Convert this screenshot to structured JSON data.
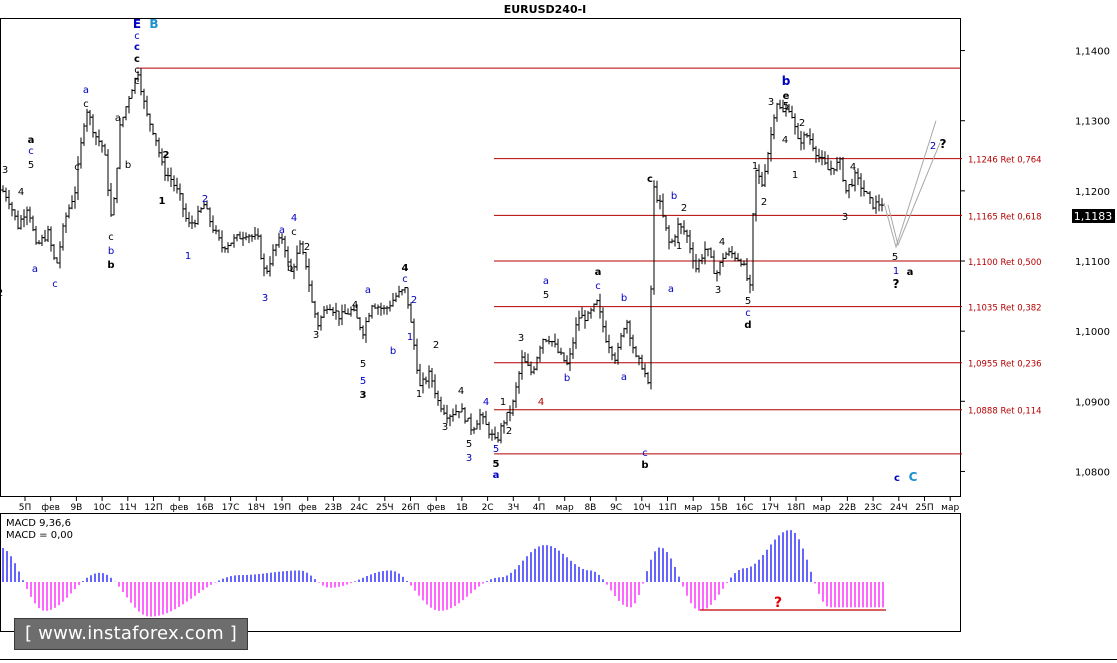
{
  "title": "EURUSD240-I",
  "current_price": "1,1183",
  "watermark": "[ www.instaforex.com ]",
  "colors": {
    "up": "#0000ff",
    "down": "#ff00ff",
    "fib": "#b40000",
    "wave_black": "#000000",
    "wave_blue": "#0000c0",
    "wave_cyan": "#1e90d0",
    "projection": "#a8a8a8"
  },
  "chart_data": [
    {
      "type": "candlestick",
      "title": "EURUSD240-I",
      "ylim": [
        1.0765,
        1.1445
      ],
      "y_ticks": [
        "1,1400",
        "1,1300",
        "1,1200",
        "1,1100",
        "1,1000",
        "1,0900",
        "1,0800"
      ],
      "y_tick_values": [
        1.14,
        1.13,
        1.12,
        1.11,
        1.1,
        1.09,
        1.08
      ],
      "x_ticks": [
        "5П",
        "фев",
        "9В",
        "10С",
        "11Ч",
        "12П",
        "фев",
        "16В",
        "17С",
        "18Ч",
        "19П",
        "фев",
        "23В",
        "24С",
        "25Ч",
        "26П",
        "фев",
        "1В",
        "2С",
        "3Ч",
        "4П",
        "мар",
        "8В",
        "9С",
        "10Ч",
        "11П",
        "мар",
        "15В",
        "16С",
        "17Ч",
        "18П",
        "мар",
        "22В",
        "23С",
        "24Ч",
        "25П",
        "мар"
      ],
      "price_path": [
        [
          0,
          1.1205
        ],
        [
          8,
          1.119
        ],
        [
          18,
          1.115
        ],
        [
          28,
          1.118
        ],
        [
          36,
          1.112
        ],
        [
          48,
          1.114
        ],
        [
          56,
          1.109
        ],
        [
          65,
          1.116
        ],
        [
          75,
          1.12
        ],
        [
          86,
          1.132
        ],
        [
          95,
          1.128
        ],
        [
          104,
          1.126
        ],
        [
          112,
          1.115
        ],
        [
          120,
          1.129
        ],
        [
          130,
          1.134
        ],
        [
          138,
          1.137
        ],
        [
          146,
          1.131
        ],
        [
          155,
          1.128
        ],
        [
          163,
          1.123
        ],
        [
          172,
          1.1215
        ],
        [
          180,
          1.119
        ],
        [
          188,
          1.115
        ],
        [
          196,
          1.116
        ],
        [
          204,
          1.118
        ],
        [
          212,
          1.115
        ],
        [
          222,
          1.112
        ],
        [
          234,
          1.113
        ],
        [
          246,
          1.114
        ],
        [
          258,
          1.113
        ],
        [
          265,
          1.108
        ],
        [
          275,
          1.112
        ],
        [
          283,
          1.1135
        ],
        [
          290,
          1.108
        ],
        [
          300,
          1.112
        ],
        [
          306,
          1.1095
        ],
        [
          312,
          1.104
        ],
        [
          318,
          1.101
        ],
        [
          328,
          1.104
        ],
        [
          340,
          1.102
        ],
        [
          352,
          1.103
        ],
        [
          363,
          1.1
        ],
        [
          372,
          1.104
        ],
        [
          385,
          1.103
        ],
        [
          396,
          1.105
        ],
        [
          406,
          1.106
        ],
        [
          413,
          1.099
        ],
        [
          420,
          1.092
        ],
        [
          430,
          1.094
        ],
        [
          438,
          1.09
        ],
        [
          448,
          1.088
        ],
        [
          460,
          1.089
        ],
        [
          472,
          1.086
        ],
        [
          480,
          1.088
        ],
        [
          488,
          1.086
        ],
        [
          496,
          1.084
        ],
        [
          503,
          1.087
        ],
        [
          512,
          1.089
        ],
        [
          522,
          1.096
        ],
        [
          532,
          1.094
        ],
        [
          542,
          1.099
        ],
        [
          550,
          1.099
        ],
        [
          558,
          1.097
        ],
        [
          568,
          1.095
        ],
        [
          578,
          1.102
        ],
        [
          588,
          1.102
        ],
        [
          597,
          1.104
        ],
        [
          606,
          1.099
        ],
        [
          616,
          1.096
        ],
        [
          626,
          1.102
        ],
        [
          636,
          1.096
        ],
        [
          643,
          1.095
        ],
        [
          650,
          1.091
        ],
        [
          652,
          1.121
        ],
        [
          660,
          1.118
        ],
        [
          670,
          1.112
        ],
        [
          678,
          1.115
        ],
        [
          686,
          1.114
        ],
        [
          696,
          1.109
        ],
        [
          706,
          1.112
        ],
        [
          716,
          1.108
        ],
        [
          724,
          1.111
        ],
        [
          732,
          1.111
        ],
        [
          742,
          1.11
        ],
        [
          750,
          1.106
        ],
        [
          755,
          1.123
        ],
        [
          762,
          1.121
        ],
        [
          770,
          1.127
        ],
        [
          776,
          1.133
        ],
        [
          782,
          1.131
        ],
        [
          790,
          1.132
        ],
        [
          798,
          1.127
        ],
        [
          808,
          1.128
        ],
        [
          818,
          1.125
        ],
        [
          828,
          1.123
        ],
        [
          840,
          1.124
        ],
        [
          846,
          1.12
        ],
        [
          855,
          1.122
        ],
        [
          864,
          1.12
        ],
        [
          872,
          1.118
        ],
        [
          884,
          1.1183
        ]
      ],
      "projection": [
        [
          884,
          1.1183
        ],
        [
          896,
          1.112
        ],
        [
          936,
          1.13
        ]
      ]
    },
    {
      "type": "bar",
      "title": "MACD 9,36,6",
      "signal_label": "MACD = 0,00",
      "ylim": [
        -0.0045,
        0.0045
      ],
      "note_label": "?"
    }
  ],
  "fib_levels": [
    {
      "price": 1.1375,
      "label": ""
    },
    {
      "price": 1.1246,
      "label": "1,1246 Ret 0,764"
    },
    {
      "price": 1.1165,
      "label": "1,1165 Ret 0,618"
    },
    {
      "price": 1.11,
      "label": "1,1100 Ret 0,500"
    },
    {
      "price": 1.1035,
      "label": "1,1035 Ret 0,382"
    },
    {
      "price": 1.0955,
      "label": "1,0955 Ret 0,236"
    },
    {
      "price": 1.0888,
      "label": "1,0888 Ret 0,114"
    },
    {
      "price": 1.0825,
      "label": ""
    }
  ],
  "wave_labels": [
    {
      "t": "E",
      "c": "b",
      "x": 137,
      "y": 28,
      "b": 1,
      "s": 12
    },
    {
      "t": "B",
      "c": "c",
      "x": 154,
      "y": 28,
      "b": 1,
      "s": 12
    },
    {
      "t": "c",
      "c": "b",
      "x": 137,
      "y": 39
    },
    {
      "t": "c",
      "c": "b",
      "x": 137,
      "y": 50,
      "b": 1
    },
    {
      "t": "c",
      "c": "k",
      "x": 137,
      "y": 62,
      "b": 1
    },
    {
      "t": "c",
      "c": "k",
      "x": 137,
      "y": 73
    },
    {
      "t": "c",
      "c": "k",
      "x": 137,
      "y": 84
    },
    {
      "t": "a",
      "c": "b",
      "x": 86,
      "y": 93
    },
    {
      "t": "c",
      "c": "k",
      "x": 86,
      "y": 107
    },
    {
      "t": "a",
      "c": "k",
      "x": 118,
      "y": 121
    },
    {
      "t": "a",
      "c": "k",
      "x": 31,
      "y": 143,
      "b": 1
    },
    {
      "t": "c",
      "c": "b",
      "x": 31,
      "y": 154
    },
    {
      "t": "5",
      "c": "k",
      "x": 31,
      "y": 168
    },
    {
      "t": "3",
      "c": "k",
      "x": 5,
      "y": 173
    },
    {
      "t": "4",
      "c": "k",
      "x": 21,
      "y": 195
    },
    {
      "t": "c",
      "c": "k",
      "x": 77,
      "y": 170
    },
    {
      "t": "2",
      "c": "k",
      "x": 0,
      "y": 296
    },
    {
      "t": "a",
      "c": "b",
      "x": 35,
      "y": 272
    },
    {
      "t": "c",
      "c": "b",
      "x": 55,
      "y": 287
    },
    {
      "t": "c",
      "c": "k",
      "x": 111,
      "y": 240
    },
    {
      "t": "b",
      "c": "b",
      "x": 111,
      "y": 254
    },
    {
      "t": "b",
      "c": "k",
      "x": 111,
      "y": 268,
      "b": 1
    },
    {
      "t": "b",
      "c": "k",
      "x": 128,
      "y": 168
    },
    {
      "t": "2",
      "c": "k",
      "x": 166,
      "y": 158,
      "b": 1
    },
    {
      "t": "1",
      "c": "k",
      "x": 162,
      "y": 204,
      "b": 1
    },
    {
      "t": "2",
      "c": "b",
      "x": 205,
      "y": 202
    },
    {
      "t": "1",
      "c": "b",
      "x": 188,
      "y": 259
    },
    {
      "t": "4",
      "c": "b",
      "x": 294,
      "y": 221
    },
    {
      "t": "a",
      "c": "b",
      "x": 282,
      "y": 233
    },
    {
      "t": "c",
      "c": "k",
      "x": 294,
      "y": 235
    },
    {
      "t": "2",
      "c": "k",
      "x": 307,
      "y": 250
    },
    {
      "t": "b",
      "c": "k",
      "x": 290,
      "y": 271
    },
    {
      "t": "3",
      "c": "b",
      "x": 265,
      "y": 301
    },
    {
      "t": "3",
      "c": "k",
      "x": 316,
      "y": 338
    },
    {
      "t": "4",
      "c": "k",
      "x": 355,
      "y": 308
    },
    {
      "t": "a",
      "c": "b",
      "x": 368,
      "y": 293
    },
    {
      "t": "b",
      "c": "b",
      "x": 393,
      "y": 354
    },
    {
      "t": "5",
      "c": "k",
      "x": 363,
      "y": 367
    },
    {
      "t": "5",
      "c": "b",
      "x": 363,
      "y": 384
    },
    {
      "t": "3",
      "c": "k",
      "x": 363,
      "y": 398,
      "b": 1
    },
    {
      "t": "4",
      "c": "k",
      "x": 405,
      "y": 271,
      "b": 1
    },
    {
      "t": "c",
      "c": "b",
      "x": 405,
      "y": 282
    },
    {
      "t": "2",
      "c": "b",
      "x": 414,
      "y": 303
    },
    {
      "t": "1",
      "c": "b",
      "x": 410,
      "y": 340
    },
    {
      "t": "2",
      "c": "k",
      "x": 436,
      "y": 348
    },
    {
      "t": "1",
      "c": "k",
      "x": 419,
      "y": 397
    },
    {
      "t": "4",
      "c": "k",
      "x": 461,
      "y": 394
    },
    {
      "t": "4",
      "c": "b",
      "x": 486,
      "y": 405
    },
    {
      "t": "3",
      "c": "k",
      "x": 445,
      "y": 430
    },
    {
      "t": "5",
      "c": "k",
      "x": 469,
      "y": 447
    },
    {
      "t": "3",
      "c": "b",
      "x": 469,
      "y": 461
    },
    {
      "t": "5",
      "c": "b",
      "x": 496,
      "y": 452
    },
    {
      "t": "5",
      "c": "k",
      "x": 496,
      "y": 467,
      "b": 1
    },
    {
      "t": "a",
      "c": "b",
      "x": 496,
      "y": 478,
      "b": 1
    },
    {
      "t": "1",
      "c": "k",
      "x": 503,
      "y": 405
    },
    {
      "t": "2",
      "c": "k",
      "x": 509,
      "y": 434
    },
    {
      "t": "3",
      "c": "k",
      "x": 521,
      "y": 341
    },
    {
      "t": "4",
      "c": "r",
      "x": 541,
      "y": 405
    },
    {
      "t": "a",
      "c": "b",
      "x": 546,
      "y": 284
    },
    {
      "t": "5",
      "c": "k",
      "x": 546,
      "y": 298
    },
    {
      "t": "b",
      "c": "b",
      "x": 567,
      "y": 381
    },
    {
      "t": "a",
      "c": "k",
      "x": 598,
      "y": 275,
      "b": 1
    },
    {
      "t": "c",
      "c": "b",
      "x": 598,
      "y": 289
    },
    {
      "t": "b",
      "c": "b",
      "x": 624,
      "y": 301
    },
    {
      "t": "a",
      "c": "b",
      "x": 624,
      "y": 380
    },
    {
      "t": "c",
      "c": "b",
      "x": 645,
      "y": 456
    },
    {
      "t": "b",
      "c": "k",
      "x": 645,
      "y": 468,
      "b": 1
    },
    {
      "t": "c",
      "c": "k",
      "x": 650,
      "y": 182,
      "b": 1
    },
    {
      "t": "b",
      "c": "b",
      "x": 674,
      "y": 199
    },
    {
      "t": "2",
      "c": "k",
      "x": 684,
      "y": 211
    },
    {
      "t": "1",
      "c": "k",
      "x": 679,
      "y": 249
    },
    {
      "t": "a",
      "c": "b",
      "x": 671,
      "y": 292
    },
    {
      "t": "3",
      "c": "k",
      "x": 718,
      "y": 293
    },
    {
      "t": "4",
      "c": "k",
      "x": 722,
      "y": 245
    },
    {
      "t": "5",
      "c": "k",
      "x": 748,
      "y": 304
    },
    {
      "t": "c",
      "c": "b",
      "x": 748,
      "y": 316
    },
    {
      "t": "d",
      "c": "k",
      "x": 748,
      "y": 328,
      "b": 1
    },
    {
      "t": "1",
      "c": "k",
      "x": 755,
      "y": 169
    },
    {
      "t": "2",
      "c": "k",
      "x": 764,
      "y": 205
    },
    {
      "t": "b",
      "c": "b",
      "x": 786,
      "y": 85,
      "b": 1,
      "s": 12
    },
    {
      "t": "3",
      "c": "k",
      "x": 771,
      "y": 105
    },
    {
      "t": "e",
      "c": "k",
      "x": 786,
      "y": 99,
      "b": 1
    },
    {
      "t": "5",
      "c": "k",
      "x": 786,
      "y": 109
    },
    {
      "t": "4",
      "c": "k",
      "x": 785,
      "y": 143
    },
    {
      "t": "2",
      "c": "k",
      "x": 802,
      "y": 126
    },
    {
      "t": "1",
      "c": "k",
      "x": 795,
      "y": 178
    },
    {
      "t": "4",
      "c": "k",
      "x": 853,
      "y": 170
    },
    {
      "t": "3",
      "c": "k",
      "x": 845,
      "y": 220
    },
    {
      "t": "2",
      "c": "b",
      "x": 933,
      "y": 149
    },
    {
      "t": "?",
      "c": "k",
      "x": 943,
      "y": 148,
      "b": 1,
      "s": 12
    },
    {
      "t": "5",
      "c": "k",
      "x": 895,
      "y": 260
    },
    {
      "t": "1",
      "c": "b",
      "x": 896,
      "y": 274
    },
    {
      "t": "a",
      "c": "k",
      "x": 910,
      "y": 275,
      "b": 1
    },
    {
      "t": "?",
      "c": "k",
      "x": 896,
      "y": 288,
      "b": 1,
      "s": 12
    },
    {
      "t": "c",
      "c": "b",
      "x": 897,
      "y": 481,
      "b": 1
    },
    {
      "t": "C",
      "c": "c",
      "x": 913,
      "y": 481,
      "b": 1,
      "s": 12
    }
  ]
}
